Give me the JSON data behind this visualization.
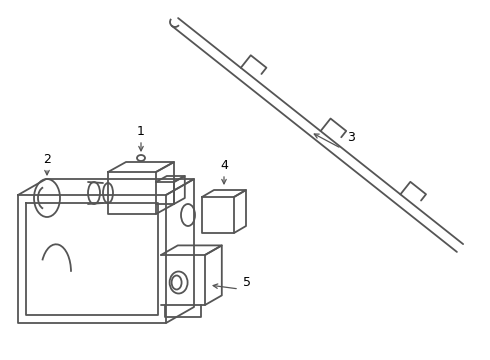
{
  "background_color": "#ffffff",
  "line_color": "#555555",
  "label_color": "#000000",
  "line_width": 1.3,
  "fig_width": 4.9,
  "fig_height": 3.6,
  "dpi": 100
}
